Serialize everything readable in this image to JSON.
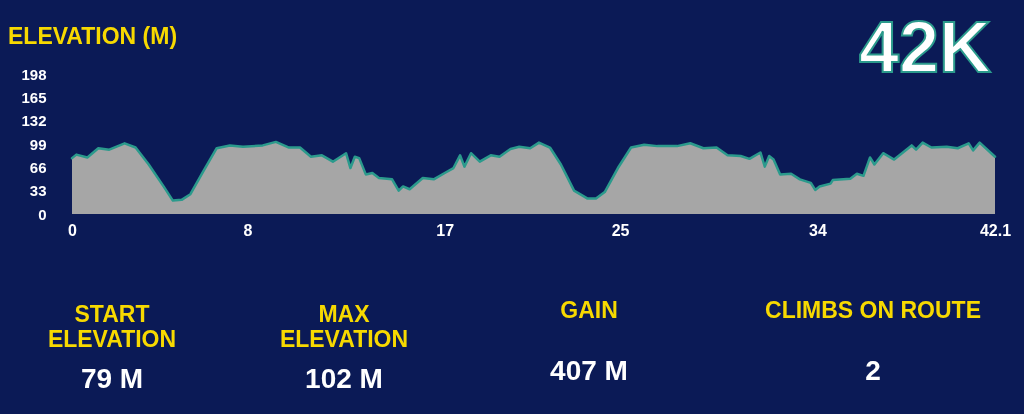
{
  "chart_data": {
    "type": "area",
    "title": "42K",
    "ylabel": "ELEVATION (M)",
    "x": [
      0,
      0.2,
      0.7,
      1.2,
      1.7,
      2.4,
      2.9,
      3.5,
      4.2,
      4.6,
      5.0,
      5.4,
      6.0,
      6.6,
      7.2,
      7.8,
      8.7,
      9.3,
      9.9,
      10.4,
      10.9,
      11.4,
      11.9,
      12.5,
      12.7,
      12.9,
      13.1,
      13.4,
      13.7,
      14.0,
      14.6,
      14.9,
      15.1,
      15.4,
      16.0,
      16.5,
      17.0,
      17.4,
      17.7,
      17.9,
      18.2,
      18.6,
      19.1,
      19.5,
      20.0,
      20.4,
      20.9,
      21.3,
      21.8,
      22.3,
      22.9,
      23.5,
      23.9,
      24.3,
      24.9,
      25.5,
      26.1,
      26.7,
      27.6,
      28.2,
      28.8,
      29.4,
      29.9,
      30.5,
      30.9,
      31.4,
      31.6,
      31.8,
      32.0,
      32.3,
      32.8,
      33.2,
      33.7,
      33.9,
      34.1,
      34.6,
      34.7,
      35.5,
      35.8,
      36.1,
      36.4,
      36.6,
      37.0,
      37.5,
      37.9,
      38.3,
      38.5,
      38.8,
      39.2,
      39.9,
      40.4,
      40.9,
      41.1,
      41.4,
      42.1
    ],
    "series": [
      {
        "color": "#a6a6a6",
        "values": [
          79,
          84,
          80,
          93,
          91,
          100,
          94,
          70,
          38,
          19,
          20,
          28,
          61,
          93,
          97,
          95,
          97,
          102,
          94,
          94,
          81,
          83,
          74,
          86,
          65,
          81,
          79,
          56,
          58,
          51,
          49,
          33,
          39,
          35,
          51,
          49,
          58,
          65,
          83,
          67,
          86,
          74,
          83,
          81,
          92,
          95,
          93,
          101,
          94,
          70,
          33,
          22,
          22,
          31,
          65,
          94,
          98,
          96,
          96,
          100,
          93,
          94,
          83,
          82,
          78,
          87,
          67,
          82,
          77,
          56,
          57,
          49,
          44,
          34,
          39,
          43,
          48,
          50,
          57,
          54,
          80,
          70,
          86,
          77,
          87,
          97,
          91,
          101,
          94,
          95,
          93,
          100,
          90,
          101,
          81
        ]
      }
    ],
    "xlim": [
      0,
      42.1
    ],
    "xticks": [
      0,
      8,
      17,
      25,
      34,
      42.1
    ],
    "ylim": [
      0,
      198
    ],
    "yticks": [
      0,
      33,
      66,
      99,
      132,
      165,
      198
    ],
    "annotations": [
      "START\nELEVATION",
      "79 M",
      "MAX\nELEVATION",
      "102 M",
      "GAIN",
      "407 M",
      "CLIMBS ON ROUTE",
      "2"
    ]
  }
}
